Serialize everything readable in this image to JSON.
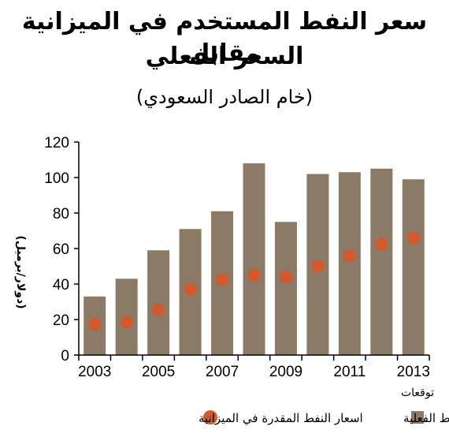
{
  "chart_data": {
    "type": "bar",
    "title": "سعر النفط المستخدم في الميزانية مقابل",
    "title_line2": "السعر الفعلي",
    "subtitle": "(خام الصادر السعودي)",
    "ylabel": "(دولار/برميل)",
    "x_note": "توقعات",
    "ylim": [
      0,
      120
    ],
    "y_ticks": [
      0,
      20,
      40,
      60,
      80,
      100,
      120
    ],
    "categories": [
      "2003",
      "2004",
      "2005",
      "2006",
      "2007",
      "2008",
      "2009",
      "2010",
      "2011",
      "2012",
      "2013"
    ],
    "x_tick_labels": [
      "2003",
      "2005",
      "2007",
      "2009",
      "2011",
      "2013"
    ],
    "series": [
      {
        "name": "اسعار النفط الفعلية",
        "kind": "bar",
        "color": "#8b7b66",
        "values": [
          33,
          43,
          59,
          71,
          81,
          108,
          75,
          102,
          103,
          105,
          99
        ]
      },
      {
        "name": "اسعار النفط المقدرة في الميزانية",
        "kind": "dot",
        "color": "#d4582a",
        "values": [
          17.5,
          18.5,
          25.5,
          37,
          42.5,
          45,
          44,
          50,
          56,
          62.5,
          66
        ]
      }
    ],
    "grid": false,
    "legend_position": "bottom"
  }
}
